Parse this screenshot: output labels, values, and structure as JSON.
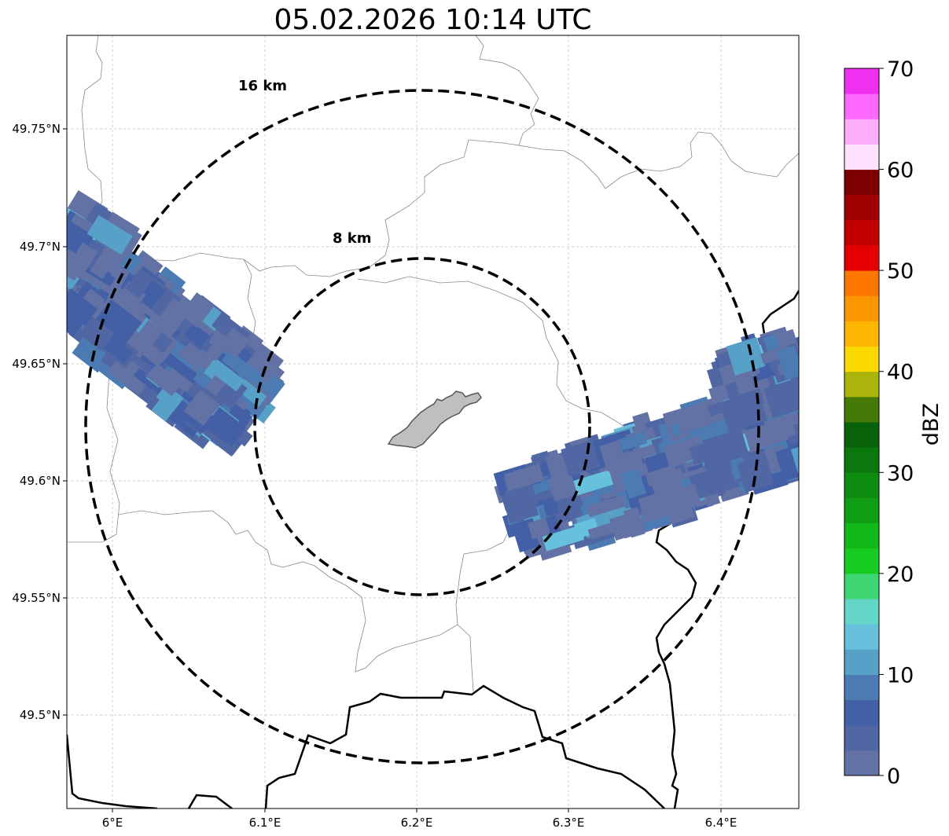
{
  "title": "05.02.2026 10:14 UTC",
  "map": {
    "x_ticks": [
      "6°E",
      "6.1°E",
      "6.2°E",
      "6.3°E",
      "6.4°E"
    ],
    "y_ticks": [
      "49.75°N",
      "49.7°N",
      "49.65°N",
      "49.6°N",
      "49.55°N",
      "49.5°N"
    ],
    "range_rings": [
      {
        "label": "16 km",
        "radius_km": 16
      },
      {
        "label": "8 km",
        "radius_km": 8
      }
    ],
    "colors": {
      "ring": "#000000",
      "admin_border": "#888888",
      "country_border": "#000000",
      "urban_area": "#bfbfbf",
      "grid": "#bbbbbb"
    }
  },
  "colorbar": {
    "label": "dBZ",
    "ticks": [
      "0",
      "10",
      "20",
      "30",
      "40",
      "50",
      "60",
      "70"
    ],
    "range": [
      0,
      70
    ],
    "colors": [
      "#6372a4",
      "#5167a3",
      "#4360a6",
      "#4b7bb2",
      "#57a0c8",
      "#67c0dc",
      "#64d6c8",
      "#3ed672",
      "#16cc20",
      "#12b818",
      "#109f14",
      "#0e8c10",
      "#0b780d",
      "#07620a",
      "#467a08",
      "#aab40a",
      "#f9d900",
      "#fdb500",
      "#fd9700",
      "#fd7700",
      "#e40000",
      "#c20000",
      "#a00000",
      "#7d0000",
      "#fde1fd",
      "#fdaffd",
      "#fd69fd",
      "#f030f0"
    ]
  }
}
